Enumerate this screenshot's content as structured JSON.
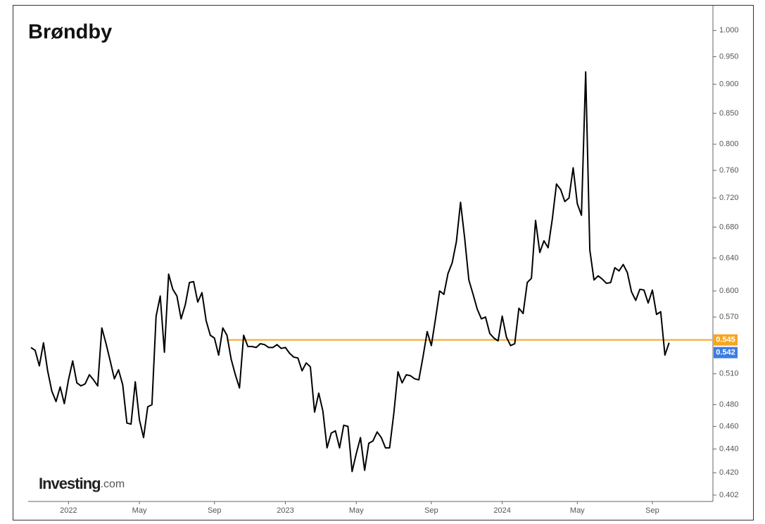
{
  "chart_data": {
    "type": "line",
    "title": "Brøndby",
    "watermark": {
      "brand": "Investing",
      "suffix": ".com"
    },
    "log_scale": true,
    "categories": [
      null,
      null,
      null,
      null,
      null,
      null,
      null,
      null,
      null,
      "2022",
      null,
      null,
      null,
      null,
      null,
      null,
      null,
      null,
      null,
      null,
      null,
      null,
      null,
      null,
      null,
      null,
      "May",
      null,
      null,
      null,
      null,
      null,
      null,
      null,
      null,
      null,
      null,
      null,
      null,
      null,
      null,
      null,
      null,
      null,
      "Sep",
      null,
      null,
      null,
      null,
      null,
      null,
      null,
      null,
      null,
      null,
      null,
      null,
      null,
      null,
      null,
      null,
      "2023",
      null,
      null,
      null,
      null,
      null,
      null,
      null,
      null,
      null,
      null,
      null,
      null,
      null,
      null,
      null,
      null,
      "May",
      null,
      null,
      null,
      null,
      null,
      null,
      null,
      null,
      null,
      null,
      null,
      null,
      null,
      null,
      null,
      null,
      null,
      "Sep",
      null,
      null,
      null,
      null,
      null,
      null,
      null,
      null,
      null,
      null,
      null,
      null,
      null,
      null,
      null,
      null,
      "2024",
      null,
      null,
      null,
      null,
      null,
      null,
      null,
      null,
      null,
      null,
      null,
      null,
      null,
      null,
      null,
      null,
      null,
      "May",
      null,
      null,
      null,
      null,
      null,
      null,
      null,
      null,
      null,
      null,
      null,
      null,
      null,
      null,
      null,
      null,
      null,
      "Sep",
      null,
      null,
      null,
      null
    ],
    "series": [
      {
        "name": "Brøndby",
        "color": "#000000",
        "values": [
          0.537,
          0.534,
          0.518,
          0.542,
          0.513,
          0.493,
          0.483,
          0.497,
          0.481,
          0.504,
          0.523,
          0.501,
          0.498,
          0.5,
          0.509,
          0.504,
          0.498,
          0.558,
          0.541,
          0.523,
          0.505,
          0.514,
          0.499,
          0.463,
          0.462,
          0.502,
          0.466,
          0.45,
          0.478,
          0.48,
          0.571,
          0.594,
          0.532,
          0.62,
          0.602,
          0.594,
          0.568,
          0.584,
          0.61,
          0.611,
          0.587,
          0.598,
          0.566,
          0.55,
          0.547,
          0.529,
          0.558,
          0.55,
          0.525,
          0.509,
          0.496,
          0.55,
          0.538,
          0.538,
          0.537,
          0.541,
          0.54,
          0.537,
          0.537,
          0.54,
          0.536,
          0.537,
          0.531,
          0.527,
          0.526,
          0.513,
          0.521,
          0.517,
          0.473,
          0.491,
          0.474,
          0.441,
          0.454,
          0.456,
          0.441,
          0.461,
          0.46,
          0.421,
          0.436,
          0.45,
          0.422,
          0.445,
          0.447,
          0.455,
          0.45,
          0.441,
          0.441,
          0.472,
          0.512,
          0.501,
          0.509,
          0.508,
          0.505,
          0.504,
          0.527,
          0.554,
          0.539,
          0.568,
          0.6,
          0.596,
          0.621,
          0.634,
          0.661,
          0.714,
          0.665,
          0.613,
          0.596,
          0.579,
          0.568,
          0.57,
          0.552,
          0.547,
          0.544,
          0.571,
          0.548,
          0.539,
          0.541,
          0.58,
          0.574,
          0.61,
          0.615,
          0.689,
          0.647,
          0.662,
          0.653,
          0.691,
          0.74,
          0.732,
          0.715,
          0.72,
          0.764,
          0.712,
          0.696,
          0.922,
          0.65,
          0.613,
          0.618,
          0.614,
          0.609,
          0.61,
          0.628,
          0.624,
          0.632,
          0.622,
          0.599,
          0.589,
          0.602,
          0.601,
          0.586,
          0.601,
          0.573,
          0.576,
          0.529,
          0.542
        ]
      }
    ],
    "last_price_color": "#3d7de0",
    "reference_line": {
      "value": 0.545,
      "color": "#f5a623"
    },
    "ylim": [
      0.397,
      1.05
    ],
    "yticks": [
      {
        "value": 1.0,
        "label": "1.000"
      },
      {
        "value": 0.95,
        "label": "0.950"
      },
      {
        "value": 0.9,
        "label": "0.900"
      },
      {
        "value": 0.85,
        "label": "0.850"
      },
      {
        "value": 0.8,
        "label": "0.800"
      },
      {
        "value": 0.76,
        "label": "0.760"
      },
      {
        "value": 0.72,
        "label": "0.720"
      },
      {
        "value": 0.68,
        "label": "0.680"
      },
      {
        "value": 0.64,
        "label": "0.640"
      },
      {
        "value": 0.6,
        "label": "0.600"
      },
      {
        "value": 0.57,
        "label": "0.570"
      },
      {
        "value": 0.51,
        "label": "0.510"
      },
      {
        "value": 0.48,
        "label": "0.480"
      },
      {
        "value": 0.46,
        "label": "0.460"
      },
      {
        "value": 0.44,
        "label": "0.440"
      },
      {
        "value": 0.42,
        "label": "0.420"
      },
      0.402
    ],
    "grid": false
  }
}
